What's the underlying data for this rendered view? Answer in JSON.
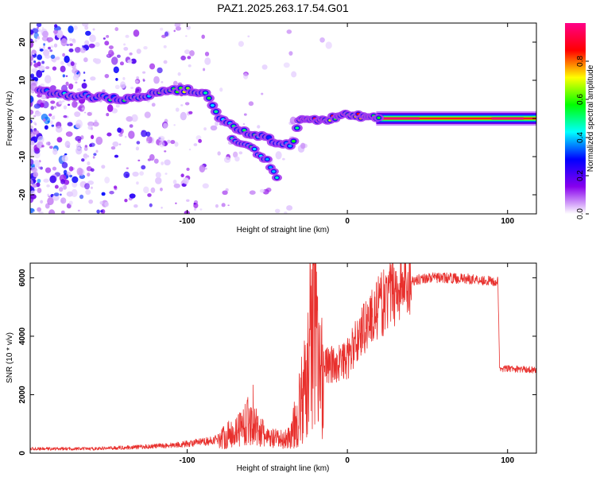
{
  "title": "PAZ1.2025.263.17.54.G01",
  "colors": {
    "snr_line": "#e8302d",
    "frame": "#000000",
    "background": "#ffffff"
  },
  "chart_data": [
    {
      "type": "heatmap",
      "xlabel": "Height of straight line (km)",
      "ylabel": "Frequency (Hz)",
      "xlim": [
        -198,
        118
      ],
      "ylim": [
        -25,
        25
      ],
      "x_ticks": [
        {
          "value": -100,
          "label": "-100"
        },
        {
          "value": 0,
          "label": "0"
        },
        {
          "value": 100,
          "label": "100"
        }
      ],
      "y_ticks": [
        {
          "value": -20,
          "label": "-20"
        },
        {
          "value": -10,
          "label": "-10"
        },
        {
          "value": 0,
          "label": "0"
        },
        {
          "value": 10,
          "label": "10"
        },
        {
          "value": 20,
          "label": "20"
        }
      ],
      "ridge": [
        {
          "x": -192,
          "y": 7
        },
        {
          "x": -170,
          "y": 6
        },
        {
          "x": -150,
          "y": 5.5
        },
        {
          "x": -130,
          "y": 5
        },
        {
          "x": -115,
          "y": 7.5
        },
        {
          "x": -100,
          "y": 7.5
        },
        {
          "x": -88,
          "y": 6.5
        },
        {
          "x": -80,
          "y": 0
        },
        {
          "x": -70,
          "y": -2.5
        },
        {
          "x": -60,
          "y": -4.5
        },
        {
          "x": -50,
          "y": -5
        },
        {
          "x": -42,
          "y": -7
        },
        {
          "x": -33,
          "y": -6.5
        },
        {
          "x": -30,
          "y": 0
        },
        {
          "x": -20,
          "y": -0.5
        },
        {
          "x": -10,
          "y": 0
        },
        {
          "x": 0,
          "y": 1
        },
        {
          "x": 10,
          "y": 0.5
        },
        {
          "x": 20,
          "y": 0
        },
        {
          "x": 118,
          "y": 0
        }
      ],
      "branch": [
        {
          "x": -72,
          "y": -5
        },
        {
          "x": -60,
          "y": -8
        },
        {
          "x": -50,
          "y": -11
        },
        {
          "x": -44,
          "y": -15
        }
      ],
      "colorbar": {
        "label": "Normalized spectral amplitude",
        "range": [
          0,
          1
        ],
        "ticks": [
          {
            "value": 0.0,
            "label": "0.0"
          },
          {
            "value": 0.2,
            "label": "0.2"
          },
          {
            "value": 0.4,
            "label": "0.4"
          },
          {
            "value": 0.6,
            "label": "0.6"
          },
          {
            "value": 0.8,
            "label": "0.8"
          }
        ],
        "colors": [
          "#ffffff",
          "#8800ee",
          "#0000ff",
          "#00ffff",
          "#00ff00",
          "#ffff00",
          "#ff0000",
          "#ff0088"
        ]
      }
    },
    {
      "type": "line",
      "xlabel": "Height of straight line (km)",
      "ylabel": "SNR (10 * v/v)",
      "xlim": [
        -198,
        118
      ],
      "ylim": [
        0,
        6500
      ],
      "x_ticks": [
        {
          "value": -100,
          "label": "-100"
        },
        {
          "value": 0,
          "label": "0"
        },
        {
          "value": 100,
          "label": "100"
        }
      ],
      "y_ticks": [
        {
          "value": 0,
          "label": "0"
        },
        {
          "value": 2000,
          "label": "2000"
        },
        {
          "value": 4000,
          "label": "4000"
        },
        {
          "value": 6000,
          "label": "6000"
        }
      ],
      "series": [
        {
          "name": "SNR",
          "envelope": [
            {
              "x": -198,
              "y": 150
            },
            {
              "x": -160,
              "y": 150
            },
            {
              "x": -130,
              "y": 210
            },
            {
              "x": -110,
              "y": 270
            },
            {
              "x": -100,
              "y": 320
            },
            {
              "x": -85,
              "y": 420
            },
            {
              "x": -75,
              "y": 600
            },
            {
              "x": -70,
              "y": 750
            },
            {
              "x": -62,
              "y": 1100
            },
            {
              "x": -55,
              "y": 800
            },
            {
              "x": -50,
              "y": 500
            },
            {
              "x": -40,
              "y": 450
            },
            {
              "x": -35,
              "y": 600
            },
            {
              "x": -30,
              "y": 1500
            },
            {
              "x": -25,
              "y": 2400
            },
            {
              "x": -21,
              "y": 4000
            },
            {
              "x": -18,
              "y": 3000
            },
            {
              "x": -10,
              "y": 3000
            },
            {
              "x": 0,
              "y": 3200
            },
            {
              "x": 10,
              "y": 4300
            },
            {
              "x": 20,
              "y": 5000
            },
            {
              "x": 30,
              "y": 5600
            },
            {
              "x": 40,
              "y": 5900
            },
            {
              "x": 50,
              "y": 6000
            },
            {
              "x": 60,
              "y": 6000
            },
            {
              "x": 80,
              "y": 5950
            },
            {
              "x": 94,
              "y": 5850
            },
            {
              "x": 95,
              "y": 2900
            },
            {
              "x": 118,
              "y": 2850
            }
          ]
        }
      ]
    }
  ]
}
